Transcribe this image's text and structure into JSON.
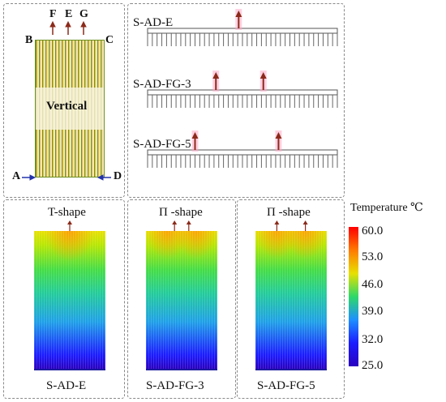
{
  "schematic": {
    "outlets": [
      "F",
      "E",
      "G"
    ],
    "corners": {
      "top_left": "B",
      "top_right": "C",
      "bottom_left": "A",
      "bottom_right": "D"
    },
    "zone_label": "Vertical",
    "colors": {
      "fin": "#6d8f1e",
      "fin_highlight": "#e8c64a",
      "band": "#f5f0d2",
      "arrow": "#8b2a1a",
      "inlet_arrow": "#2233aa"
    }
  },
  "profiles": [
    {
      "label": "S-AD-E",
      "outlet_count": 1
    },
    {
      "label": "S-AD-FG-3",
      "outlet_count": 2
    },
    {
      "label": "S-AD-FG-5",
      "outlet_count": 2
    }
  ],
  "temperature_maps": [
    {
      "shape": "T-shape",
      "label": "S-AD-E",
      "outlet_count": 1
    },
    {
      "shape": "Π -shape",
      "label": "S-AD-FG-3",
      "outlet_count": 2
    },
    {
      "shape": "Π -shape",
      "label": "S-AD-FG-5",
      "outlet_count": 2
    }
  ],
  "colorbar": {
    "title": "Temperature ℃",
    "ticks": [
      "60.0",
      "53.0",
      "46.0",
      "39.0",
      "32.0",
      "25.0"
    ],
    "colors": [
      "#ff0000",
      "#ff7a00",
      "#e8e000",
      "#2ed86a",
      "#1e90ff",
      "#1b1bff",
      "#2a00c0"
    ]
  }
}
